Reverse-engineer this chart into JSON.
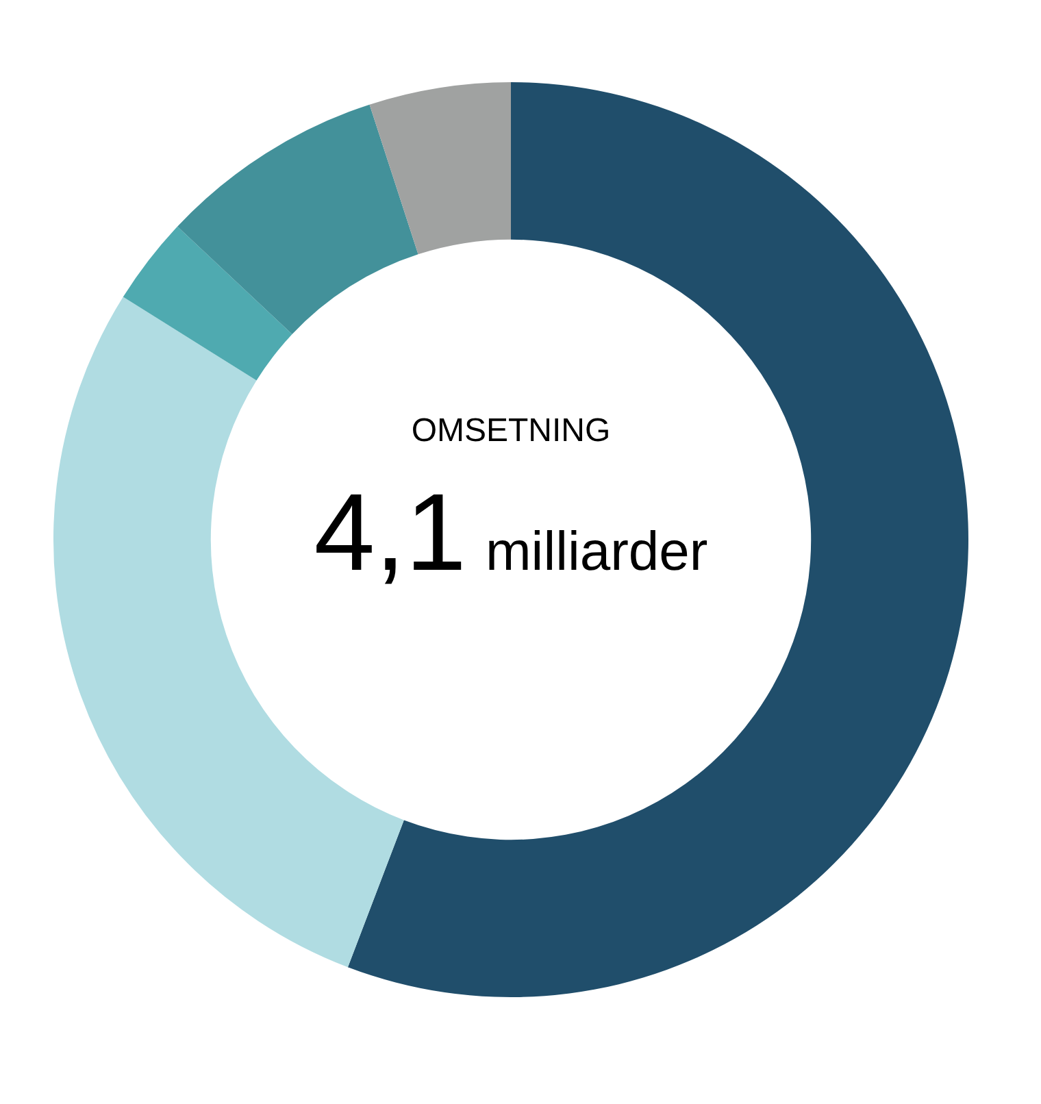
{
  "chart_data": {
    "type": "donut",
    "title": "OMSETNING",
    "annotations": [
      "4,1",
      "milliarder"
    ],
    "categories": [
      null,
      null,
      null,
      null,
      null
    ],
    "values": [
      55.8,
      28.1,
      3.1,
      8.0,
      5.0
    ],
    "colors": [
      "#204e6b",
      "#b0dce2",
      "#4faab0",
      "#43919a",
      "#a0a2a1"
    ]
  }
}
